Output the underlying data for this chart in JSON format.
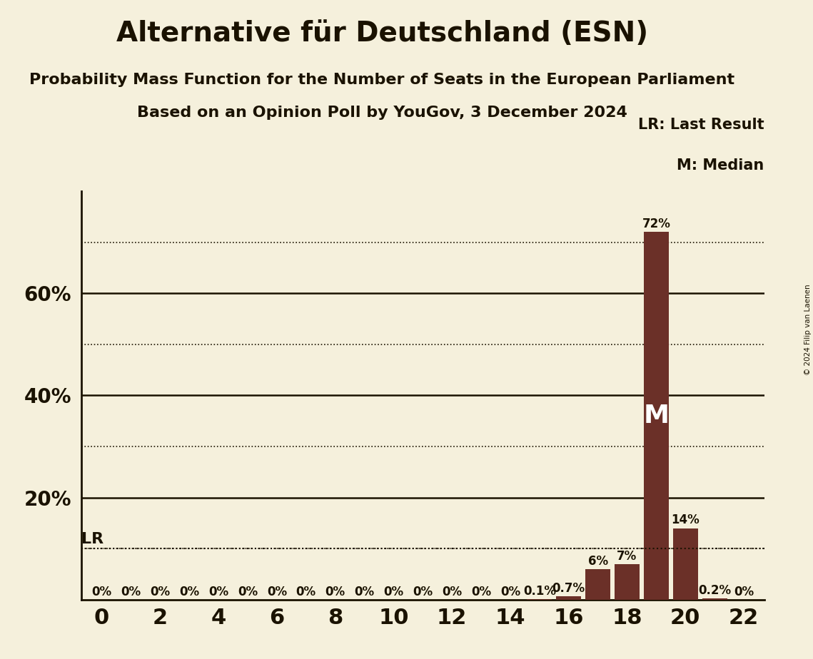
{
  "title": "Alternative für Deutschland (ESN)",
  "subtitle1": "Probability Mass Function for the Number of Seats in the European Parliament",
  "subtitle2": "Based on an Opinion Poll by YouGov, 3 December 2024",
  "copyright": "© 2024 Filip van Laenen",
  "seats": [
    0,
    1,
    2,
    3,
    4,
    5,
    6,
    7,
    8,
    9,
    10,
    11,
    12,
    13,
    14,
    15,
    16,
    17,
    18,
    19,
    20,
    21,
    22
  ],
  "probabilities": [
    0,
    0,
    0,
    0,
    0,
    0,
    0,
    0,
    0,
    0,
    0,
    0,
    0,
    0,
    0,
    0.001,
    0.007,
    0.06,
    0.07,
    0.72,
    0.14,
    0.002,
    0
  ],
  "bar_color": "#6B3028",
  "background_color": "#F5F0DC",
  "text_color": "#1a1200",
  "xlim": [
    -0.7,
    22.7
  ],
  "ylim": [
    0,
    0.8
  ],
  "yticks": [
    0.2,
    0.4,
    0.6
  ],
  "ytick_labels": [
    "20%",
    "40%",
    "60%"
  ],
  "xticks": [
    0,
    2,
    4,
    6,
    8,
    10,
    12,
    14,
    16,
    18,
    20,
    22
  ],
  "solid_gridlines": [
    0.2,
    0.4,
    0.6
  ],
  "dotted_gridlines": [
    0.1,
    0.3,
    0.5,
    0.7
  ],
  "lr_value": 0.1,
  "lr_label": "LR",
  "median_seat": 19,
  "median_label": "M",
  "legend_lr": "LR: Last Result",
  "legend_m": "M: Median",
  "title_fontsize": 28,
  "subtitle_fontsize": 16,
  "axis_fontsize": 22,
  "bar_label_fontsize": 12,
  "ytick_fontsize": 20,
  "lr_fontsize": 16,
  "median_fontsize": 26,
  "legend_fontsize": 15
}
